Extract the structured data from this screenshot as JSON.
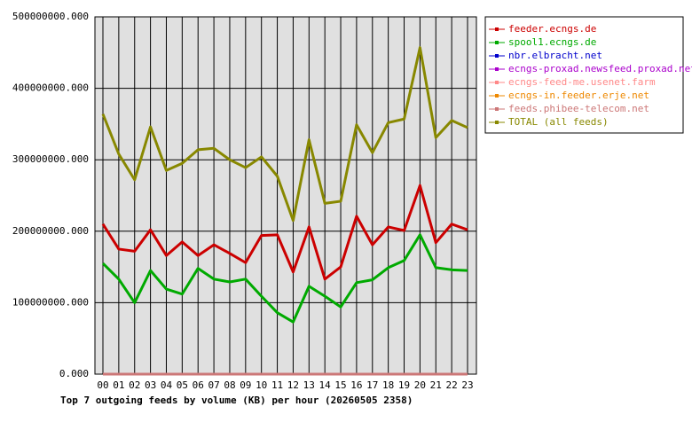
{
  "chart_data": {
    "type": "line",
    "title": "Top 7 outgoing feeds by volume (KB) per hour (20260505 2358)",
    "categories": [
      "00",
      "01",
      "02",
      "03",
      "04",
      "05",
      "06",
      "07",
      "08",
      "09",
      "10",
      "11",
      "12",
      "13",
      "14",
      "15",
      "16",
      "17",
      "18",
      "19",
      "20",
      "21",
      "22",
      "23"
    ],
    "ylim": [
      0,
      500000000
    ],
    "yticks": [
      {
        "value": 0,
        "label": "0.000"
      },
      {
        "value": 100000000,
        "label": "100000000.000"
      },
      {
        "value": 200000000,
        "label": "200000000.000"
      },
      {
        "value": 300000000,
        "label": "300000000.000"
      },
      {
        "value": 400000000,
        "label": "400000000.000"
      },
      {
        "value": 500000000,
        "label": "500000000.000"
      }
    ],
    "grid": true,
    "series": [
      {
        "name": "feeder.ecngs.de",
        "color": "#cc0000",
        "values": [
          210000000,
          175000000,
          172000000,
          202000000,
          166000000,
          185000000,
          166000000,
          181000000,
          169000000,
          156000000,
          194000000,
          195000000,
          143000000,
          206000000,
          133000000,
          150000000,
          221000000,
          181000000,
          206000000,
          201000000,
          264000000,
          184000000,
          210000000,
          202000000
        ]
      },
      {
        "name": "spool1.ecngs.de",
        "color": "#00aa00",
        "values": [
          155000000,
          133000000,
          100000000,
          145000000,
          119000000,
          112000000,
          148000000,
          133000000,
          129000000,
          133000000,
          109000000,
          86000000,
          73000000,
          123000000,
          109000000,
          94000000,
          128000000,
          132000000,
          149000000,
          159000000,
          195000000,
          149000000,
          146000000,
          145000000
        ]
      },
      {
        "name": "nbr.elbracht.net",
        "color": "#0000cc",
        "values": [
          0,
          0,
          0,
          0,
          0,
          0,
          0,
          0,
          0,
          0,
          0,
          0,
          0,
          0,
          0,
          0,
          0,
          0,
          0,
          0,
          0,
          0,
          0,
          0
        ]
      },
      {
        "name": "ecngs-proxad.newsfeed.proxad.net",
        "color": "#aa00cc",
        "values": [
          0,
          0,
          0,
          0,
          0,
          0,
          0,
          0,
          0,
          0,
          0,
          0,
          0,
          0,
          0,
          0,
          0,
          0,
          0,
          0,
          0,
          0,
          0,
          0
        ]
      },
      {
        "name": "ecngs-feed-me.usenet.farm",
        "color": "#ff8888",
        "values": [
          0,
          0,
          0,
          0,
          0,
          0,
          0,
          0,
          0,
          0,
          0,
          0,
          0,
          0,
          0,
          0,
          0,
          0,
          0,
          0,
          0,
          0,
          0,
          0
        ]
      },
      {
        "name": "ecngs-in.feeder.erje.net",
        "color": "#ee8800",
        "values": [
          0,
          0,
          0,
          0,
          0,
          0,
          0,
          0,
          0,
          0,
          0,
          0,
          0,
          0,
          0,
          0,
          0,
          0,
          0,
          0,
          0,
          0,
          0,
          0
        ]
      },
      {
        "name": "feeds.phibee-telecom.net",
        "color": "#cc7777",
        "values": [
          0,
          0,
          0,
          0,
          0,
          0,
          0,
          0,
          0,
          0,
          0,
          0,
          0,
          0,
          0,
          0,
          0,
          0,
          0,
          0,
          0,
          0,
          0,
          0
        ]
      },
      {
        "name": "TOTAL (all feeds)",
        "color": "#888800",
        "values": [
          364000000,
          308000000,
          272000000,
          346000000,
          285000000,
          295000000,
          314000000,
          316000000,
          300000000,
          289000000,
          304000000,
          277000000,
          215000000,
          328000000,
          239000000,
          242000000,
          349000000,
          310000000,
          352000000,
          357000000,
          457000000,
          331000000,
          355000000,
          345000000
        ]
      }
    ]
  }
}
